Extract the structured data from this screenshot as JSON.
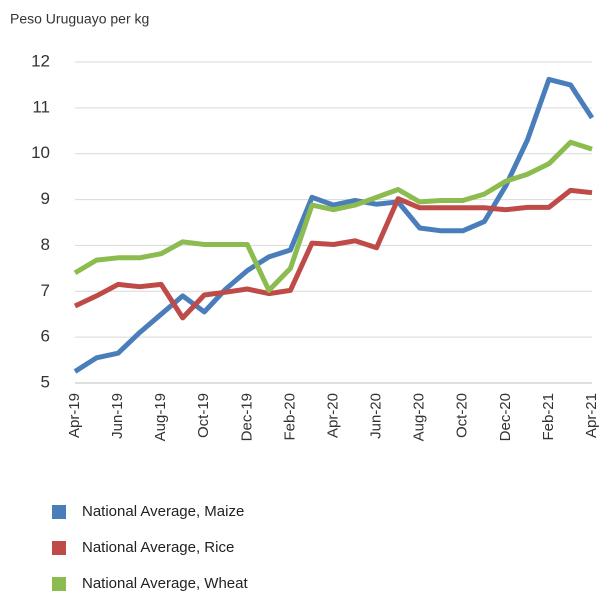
{
  "chart_data": {
    "type": "line",
    "y_axis_label": "Peso Uruguayo per kg",
    "categories": [
      "Apr-19",
      null,
      "Jun-19",
      null,
      "Aug-19",
      null,
      "Oct-19",
      null,
      "Dec-19",
      null,
      "Feb-20",
      null,
      "Apr-20",
      null,
      "Jun-20",
      null,
      "Aug-20",
      null,
      "Oct-20",
      null,
      "Dec-20",
      null,
      "Feb-21",
      null,
      "Apr-21"
    ],
    "series": [
      {
        "name": "National Average, Maize",
        "color": "#4a7ebb",
        "values": [
          5.25,
          5.55,
          5.65,
          6.1,
          6.5,
          6.9,
          6.55,
          7.05,
          7.45,
          7.75,
          7.9,
          9.05,
          8.88,
          8.98,
          8.9,
          8.95,
          8.38,
          8.32,
          8.32,
          8.52,
          9.3,
          10.3,
          11.62,
          11.5,
          10.78
        ]
      },
      {
        "name": "National Average, Rice",
        "color": "#be4b48",
        "values": [
          6.68,
          6.9,
          7.15,
          7.1,
          7.15,
          6.42,
          6.92,
          6.98,
          7.05,
          6.95,
          7.02,
          8.05,
          8.02,
          8.1,
          7.95,
          9.02,
          8.82,
          8.82,
          8.82,
          8.82,
          8.78,
          8.83,
          8.83,
          9.2,
          9.15
        ]
      },
      {
        "name": "National Average, Wheat",
        "color": "#8cbc4f",
        "values": [
          7.4,
          7.68,
          7.73,
          7.73,
          7.82,
          8.08,
          8.02,
          8.02,
          8.02,
          7.02,
          7.5,
          8.88,
          8.78,
          8.88,
          9.05,
          9.22,
          8.95,
          8.98,
          8.98,
          9.12,
          9.4,
          9.55,
          9.78,
          10.25,
          10.1
        ]
      }
    ],
    "ylim": [
      5,
      12
    ],
    "yticks": [
      5,
      6,
      7,
      8,
      9,
      10,
      11,
      12
    ],
    "grid": true,
    "legend": "bottom"
  }
}
